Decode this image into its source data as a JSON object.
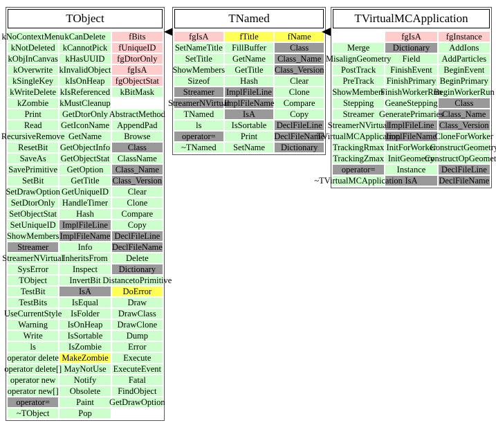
{
  "colors": {
    "green": "#ccffcc",
    "pink": "#ffcccc",
    "gray": "#999999",
    "yellow": "#ffff55",
    "arrow": "#000000"
  },
  "arrows": [
    {
      "name": "inheritance-arrow-tnamed-to-tobject"
    },
    {
      "name": "inheritance-arrow-tvirtualmcapplication-to-tnamed"
    }
  ],
  "classes": [
    {
      "title": "TObject",
      "columns": [
        [
          {
            "label": "kNoContextMenu",
            "color": "green"
          },
          {
            "label": "kNotDeleted",
            "color": "green"
          },
          {
            "label": "kObjInCanvas",
            "color": "green"
          },
          {
            "label": "kOverwrite",
            "color": "green"
          },
          {
            "label": "kSingleKey",
            "color": "green"
          },
          {
            "label": "kWriteDelete",
            "color": "green"
          },
          {
            "label": "kZombie",
            "color": "green"
          },
          {
            "label": "Print",
            "color": "green"
          },
          {
            "label": "Read",
            "color": "green"
          },
          {
            "label": "RecursiveRemove",
            "color": "green"
          },
          {
            "label": "ResetBit",
            "color": "green"
          },
          {
            "label": "SaveAs",
            "color": "green"
          },
          {
            "label": "SavePrimitive",
            "color": "green"
          },
          {
            "label": "SetBit",
            "color": "green"
          },
          {
            "label": "SetDrawOption",
            "color": "green"
          },
          {
            "label": "SetDtorOnly",
            "color": "green"
          },
          {
            "label": "SetObjectStat",
            "color": "green"
          },
          {
            "label": "SetUniqueID",
            "color": "green"
          },
          {
            "label": "ShowMembers",
            "color": "green"
          },
          {
            "label": "Streamer",
            "color": "gray"
          },
          {
            "label": "StreamerNVirtual",
            "color": "green"
          },
          {
            "label": "SysError",
            "color": "green"
          },
          {
            "label": "TObject",
            "color": "green"
          },
          {
            "label": "TestBit",
            "color": "green"
          },
          {
            "label": "TestBits",
            "color": "green"
          },
          {
            "label": "UseCurrentStyle",
            "color": "green"
          },
          {
            "label": "Warning",
            "color": "green"
          },
          {
            "label": "Write",
            "color": "green"
          },
          {
            "label": "ls",
            "color": "green"
          },
          {
            "label": "operator delete",
            "color": "green"
          },
          {
            "label": "operator delete[]",
            "color": "green"
          },
          {
            "label": "operator new",
            "color": "green"
          },
          {
            "label": "operator new[]",
            "color": "green"
          },
          {
            "label": "operator=",
            "color": "gray"
          },
          {
            "label": "~TObject",
            "color": "green"
          }
        ],
        [
          {
            "label": "kCanDelete",
            "color": "green"
          },
          {
            "label": "kCannotPick",
            "color": "green"
          },
          {
            "label": "kHasUUID",
            "color": "green"
          },
          {
            "label": "kInvalidObject",
            "color": "green"
          },
          {
            "label": "kIsOnHeap",
            "color": "green"
          },
          {
            "label": "kIsReferenced",
            "color": "green"
          },
          {
            "label": "kMustCleanup",
            "color": "green"
          },
          {
            "label": "GetDtorOnly",
            "color": "green"
          },
          {
            "label": "GetIconName",
            "color": "green"
          },
          {
            "label": "GetName",
            "color": "green"
          },
          {
            "label": "GetObjectInfo",
            "color": "green"
          },
          {
            "label": "GetObjectStat",
            "color": "green"
          },
          {
            "label": "GetOption",
            "color": "green"
          },
          {
            "label": "GetTitle",
            "color": "green"
          },
          {
            "label": "GetUniqueID",
            "color": "green"
          },
          {
            "label": "HandleTimer",
            "color": "green"
          },
          {
            "label": "Hash",
            "color": "green"
          },
          {
            "label": "ImplFileLine",
            "color": "gray"
          },
          {
            "label": "ImplFileName",
            "color": "gray"
          },
          {
            "label": "Info",
            "color": "green"
          },
          {
            "label": "InheritsFrom",
            "color": "green"
          },
          {
            "label": "Inspect",
            "color": "green"
          },
          {
            "label": "InvertBit",
            "color": "green"
          },
          {
            "label": "IsA",
            "color": "gray"
          },
          {
            "label": "IsEqual",
            "color": "green"
          },
          {
            "label": "IsFolder",
            "color": "green"
          },
          {
            "label": "IsOnHeap",
            "color": "green"
          },
          {
            "label": "IsSortable",
            "color": "green"
          },
          {
            "label": "IsZombie",
            "color": "green"
          },
          {
            "label": "MakeZombie",
            "color": "yellow"
          },
          {
            "label": "MayNotUse",
            "color": "green"
          },
          {
            "label": "Notify",
            "color": "green"
          },
          {
            "label": "Obsolete",
            "color": "green"
          },
          {
            "label": "Paint",
            "color": "green"
          },
          {
            "label": "Pop",
            "color": "green"
          }
        ],
        [
          {
            "label": "fBits",
            "color": "pink"
          },
          {
            "label": "fUniqueID",
            "color": "pink"
          },
          {
            "label": "fgDtorOnly",
            "color": "pink"
          },
          {
            "label": "fgIsA",
            "color": "pink"
          },
          {
            "label": "fgObjectStat",
            "color": "pink"
          },
          {
            "label": "kBitMask",
            "color": "green"
          },
          null,
          {
            "label": "AbstractMethod",
            "color": "green"
          },
          {
            "label": "AppendPad",
            "color": "green"
          },
          {
            "label": "Browse",
            "color": "green"
          },
          {
            "label": "Class",
            "color": "gray"
          },
          {
            "label": "ClassName",
            "color": "green"
          },
          {
            "label": "Class_Name",
            "color": "gray"
          },
          {
            "label": "Class_Version",
            "color": "gray"
          },
          {
            "label": "Clear",
            "color": "green"
          },
          {
            "label": "Clone",
            "color": "green"
          },
          {
            "label": "Compare",
            "color": "green"
          },
          {
            "label": "Copy",
            "color": "green"
          },
          {
            "label": "DeclFileLine",
            "color": "gray"
          },
          {
            "label": "DeclFileName",
            "color": "gray"
          },
          {
            "label": "Delete",
            "color": "green"
          },
          {
            "label": "Dictionary",
            "color": "gray"
          },
          {
            "label": "DistancetoPrimitive",
            "color": "green"
          },
          {
            "label": "DoError",
            "color": "yellow"
          },
          {
            "label": "Draw",
            "color": "green"
          },
          {
            "label": "DrawClass",
            "color": "green"
          },
          {
            "label": "DrawClone",
            "color": "green"
          },
          {
            "label": "Dump",
            "color": "green"
          },
          {
            "label": "Error",
            "color": "green"
          },
          {
            "label": "Execute",
            "color": "green"
          },
          {
            "label": "ExecuteEvent",
            "color": "green"
          },
          {
            "label": "Fatal",
            "color": "green"
          },
          {
            "label": "FindObject",
            "color": "green"
          },
          {
            "label": "GetDrawOption",
            "color": "green"
          },
          null
        ]
      ]
    },
    {
      "title": "TNamed",
      "columns": [
        [
          {
            "label": "fgIsA",
            "color": "pink"
          },
          {
            "label": "SetNameTitle",
            "color": "green"
          },
          {
            "label": "SetTitle",
            "color": "green"
          },
          {
            "label": "ShowMembers",
            "color": "green"
          },
          {
            "label": "Sizeof",
            "color": "green"
          },
          {
            "label": "Streamer",
            "color": "gray"
          },
          {
            "label": "StreamerNVirtual",
            "color": "gray"
          },
          {
            "label": "TNamed",
            "color": "green"
          },
          {
            "label": "ls",
            "color": "green"
          },
          {
            "label": "operator=",
            "color": "gray"
          },
          {
            "label": "~TNamed",
            "color": "green"
          }
        ],
        [
          {
            "label": "fTitle",
            "color": "yellow"
          },
          {
            "label": "FillBuffer",
            "color": "green"
          },
          {
            "label": "GetName",
            "color": "green"
          },
          {
            "label": "GetTitle",
            "color": "green"
          },
          {
            "label": "Hash",
            "color": "green"
          },
          {
            "label": "ImplFileLine",
            "color": "gray"
          },
          {
            "label": "ImplFileName",
            "color": "gray"
          },
          {
            "label": "IsA",
            "color": "gray"
          },
          {
            "label": "IsSortable",
            "color": "green"
          },
          {
            "label": "Print",
            "color": "green"
          },
          {
            "label": "SetName",
            "color": "green"
          }
        ],
        [
          {
            "label": "fName",
            "color": "yellow"
          },
          {
            "label": "Class",
            "color": "gray"
          },
          {
            "label": "Class_Name",
            "color": "gray"
          },
          {
            "label": "Class_Version",
            "color": "gray"
          },
          {
            "label": "Clear",
            "color": "green"
          },
          {
            "label": "Clone",
            "color": "green"
          },
          {
            "label": "Compare",
            "color": "green"
          },
          {
            "label": "Copy",
            "color": "green"
          },
          {
            "label": "DeclFileLine",
            "color": "gray"
          },
          {
            "label": "DeclFileName",
            "color": "gray"
          },
          {
            "label": "Dictionary",
            "color": "gray"
          }
        ]
      ]
    },
    {
      "title": "TVirtualMCApplication",
      "columns": [
        [
          null,
          {
            "label": "Merge",
            "color": "green"
          },
          {
            "label": "MisalignGeometry",
            "color": "green"
          },
          {
            "label": "PostTrack",
            "color": "green"
          },
          {
            "label": "PreTrack",
            "color": "green"
          },
          {
            "label": "ShowMembers",
            "color": "green"
          },
          {
            "label": "Stepping",
            "color": "green"
          },
          {
            "label": "Streamer",
            "color": "green"
          },
          {
            "label": "StreamerNVirtual",
            "color": "green"
          },
          {
            "label": "TVirtualMCApplication",
            "color": "green"
          },
          {
            "label": "TrackingRmax",
            "color": "green"
          },
          {
            "label": "TrackingZmax",
            "color": "green"
          },
          {
            "label": "operator=",
            "color": "gray"
          },
          {
            "label": "~TVirtualMCApplication",
            "color": "green"
          }
        ],
        [
          {
            "label": "fgIsA",
            "color": "pink"
          },
          {
            "label": "Dictionary",
            "color": "gray"
          },
          {
            "label": "Field",
            "color": "green"
          },
          {
            "label": "FinishEvent",
            "color": "green"
          },
          {
            "label": "FinishPrimary",
            "color": "green"
          },
          {
            "label": "FinishWorkerRun",
            "color": "green"
          },
          {
            "label": "GeaneStepping",
            "color": "green"
          },
          {
            "label": "GeneratePrimaries",
            "color": "green"
          },
          {
            "label": "ImplFileLine",
            "color": "gray"
          },
          {
            "label": "ImplFileName",
            "color": "gray"
          },
          {
            "label": "InitForWorker",
            "color": "green"
          },
          {
            "label": "InitGeometry",
            "color": "green"
          },
          {
            "label": "Instance",
            "color": "green"
          },
          {
            "label": "IsA",
            "color": "gray"
          }
        ],
        [
          {
            "label": "fgInstance",
            "color": "pink"
          },
          {
            "label": "AddIons",
            "color": "green"
          },
          {
            "label": "AddParticles",
            "color": "green"
          },
          {
            "label": "BeginEvent",
            "color": "green"
          },
          {
            "label": "BeginPrimary",
            "color": "green"
          },
          {
            "label": "BeginWorkerRun",
            "color": "green"
          },
          {
            "label": "Class",
            "color": "gray"
          },
          {
            "label": "Class_Name",
            "color": "gray"
          },
          {
            "label": "Class_Version",
            "color": "gray"
          },
          {
            "label": "CloneForWorker",
            "color": "green"
          },
          {
            "label": "ConstructGeometry",
            "color": "green"
          },
          {
            "label": "ConstructOpGeometry",
            "color": "green"
          },
          {
            "label": "DeclFileLine",
            "color": "gray"
          },
          {
            "label": "DeclFileName",
            "color": "gray"
          }
        ]
      ]
    }
  ]
}
